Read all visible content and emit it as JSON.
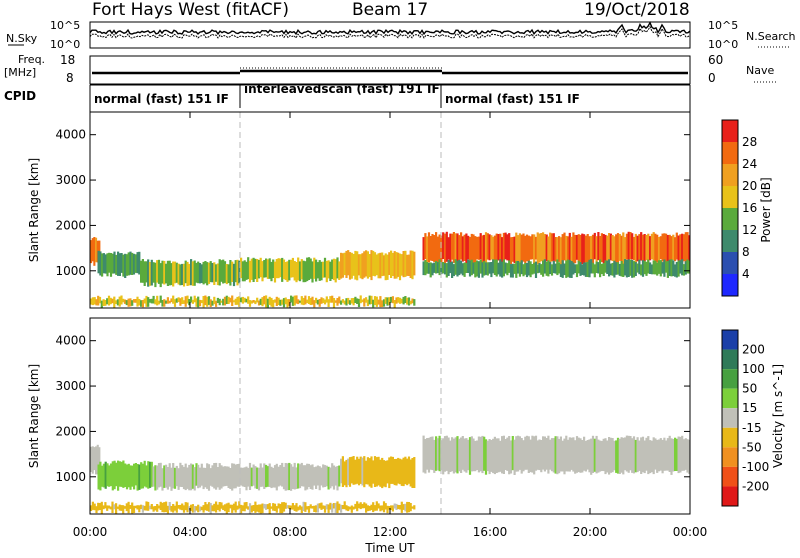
{
  "header": {
    "station": "Fort Hays West (fitACF)",
    "beam": "Beam 17",
    "date": "19/Oct/2018"
  },
  "noise_panel": {
    "left_label": "N.Sky",
    "right_label": "N.Search",
    "left_ticks": [
      "10^5",
      "10^0"
    ],
    "right_ticks": [
      "10^5",
      "10^0"
    ]
  },
  "freq_panel": {
    "left_label_line1": "Freq.",
    "left_label_line2": "[MHz]",
    "left_ticks": [
      "18",
      "8"
    ],
    "right_label": "Nave",
    "right_ticks": [
      "60",
      "0"
    ]
  },
  "cpid": {
    "label": "CPID",
    "segments": [
      {
        "name": "normal (fast) 151 IF",
        "start_hour": 0,
        "end_hour": 6
      },
      {
        "name": "interleavedscan (fast) 191 IF",
        "start_hour": 6,
        "end_hour": 14
      },
      {
        "name": "normal (fast) 151 IF",
        "start_hour": 14,
        "end_hour": 24
      }
    ]
  },
  "x_axis": {
    "label": "Time UT",
    "tick_labels": [
      "00:00",
      "04:00",
      "08:00",
      "12:00",
      "16:00",
      "20:00",
      "00:00"
    ],
    "tick_hours": [
      0,
      4,
      8,
      12,
      16,
      20,
      24
    ]
  },
  "power_panel": {
    "ylabel": "Slant Range [km]",
    "yticks": [
      1000,
      2000,
      3000,
      4000
    ],
    "ylim": [
      180,
      4500
    ],
    "colorbar_label": "Power [dB]",
    "colorbar_ticks": [
      4,
      8,
      12,
      16,
      20,
      24,
      28
    ],
    "colorbar_colors": [
      "#1e28ff",
      "#2b4fb0",
      "#3e8a6c",
      "#5aaa3c",
      "#e8c21a",
      "#f0a020",
      "#f26a10",
      "#e8201a"
    ]
  },
  "velocity_panel": {
    "ylabel": "Slant Range [km]",
    "yticks": [
      1000,
      2000,
      3000,
      4000
    ],
    "ylim": [
      180,
      4500
    ],
    "colorbar_label": "Velocity [m s^-1]",
    "colorbar_ticks": [
      "200",
      "100",
      "50",
      "15",
      "-15",
      "-50",
      "-100",
      "-200"
    ],
    "colorbar_colors": [
      "#1a3fa8",
      "#2f7a58",
      "#47a040",
      "#7ccf3a",
      "#c0c0b8",
      "#e8b818",
      "#f09020",
      "#f05018",
      "#e01818"
    ]
  },
  "chart_data": {
    "type": "heatmap",
    "x_unit": "hours UT",
    "y_unit": "slant range km",
    "power_regions": [
      {
        "t_start": 0.0,
        "t_end": 0.4,
        "r_low": 1150,
        "r_high": 1700,
        "level_db": 24
      },
      {
        "t_start": 0.3,
        "t_end": 2.0,
        "r_low": 900,
        "r_high": 1400,
        "level_db": 12
      },
      {
        "t_start": 2.0,
        "t_end": 6.0,
        "r_low": 700,
        "r_high": 1200,
        "level_db": 14
      },
      {
        "t_start": 6.0,
        "t_end": 10.0,
        "r_low": 800,
        "r_high": 1250,
        "level_db": 16
      },
      {
        "t_start": 10.0,
        "t_end": 13.0,
        "r_low": 850,
        "r_high": 1400,
        "level_db": 20
      },
      {
        "t_start": 13.3,
        "t_end": 24.0,
        "r_low": 1200,
        "r_high": 1800,
        "level_db": 26
      },
      {
        "t_start": 13.3,
        "t_end": 24.0,
        "r_low": 900,
        "r_high": 1200,
        "level_db": 12
      },
      {
        "t_start": 0.0,
        "t_end": 13.0,
        "r_low": 250,
        "r_high": 400,
        "level_db": 18
      }
    ],
    "velocity_regions": [
      {
        "t_start": 0.0,
        "t_end": 0.4,
        "r_low": 1100,
        "r_high": 1700,
        "velocity": 0
      },
      {
        "t_start": 0.3,
        "t_end": 2.5,
        "r_low": 750,
        "r_high": 1300,
        "velocity": 30
      },
      {
        "t_start": 2.5,
        "t_end": 10.0,
        "r_low": 750,
        "r_high": 1250,
        "velocity": 0
      },
      {
        "t_start": 10.0,
        "t_end": 13.0,
        "r_low": 800,
        "r_high": 1400,
        "velocity": -30
      },
      {
        "t_start": 13.3,
        "t_end": 24.0,
        "r_low": 1100,
        "r_high": 1850,
        "velocity": 0
      },
      {
        "t_start": 0.0,
        "t_end": 13.0,
        "r_low": 250,
        "r_high": 400,
        "velocity": -30
      }
    ]
  }
}
